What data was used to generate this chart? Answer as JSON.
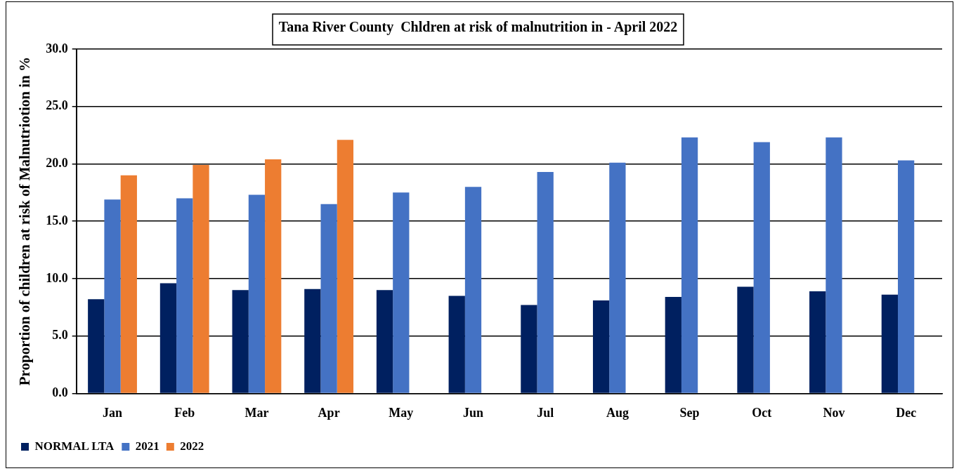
{
  "chart_data": {
    "type": "bar",
    "title": "Tana River County  Chldren at risk of malnutrition in - April 2022",
    "ylabel": "Proportion of children at risk of Malnutriotion in %",
    "categories": [
      "Jan",
      "Feb",
      "Mar",
      "Apr",
      "May",
      "Jun",
      "Jul",
      "Aug",
      "Sep",
      "Oct",
      "Nov",
      "Dec"
    ],
    "series": [
      {
        "name": "NORMAL LTA",
        "color": "#002060",
        "values": [
          8.2,
          9.6,
          9.0,
          9.1,
          9.0,
          8.5,
          7.7,
          8.1,
          8.4,
          9.3,
          8.9,
          8.6
        ]
      },
      {
        "name": "2021",
        "color": "#4472c4",
        "values": [
          16.9,
          17.0,
          17.3,
          16.5,
          17.5,
          18.0,
          19.3,
          20.1,
          22.3,
          21.9,
          22.3,
          20.3
        ]
      },
      {
        "name": "2022",
        "color": "#ed7d31",
        "values": [
          19.0,
          19.9,
          20.4,
          22.1,
          null,
          null,
          null,
          null,
          null,
          null,
          null,
          null
        ]
      }
    ],
    "ylim": [
      0,
      30
    ],
    "yticks": [
      {
        "value": 0,
        "label": "0.0"
      },
      {
        "value": 5,
        "label": "5.0"
      },
      {
        "value": 10,
        "label": "10.0"
      },
      {
        "value": 15,
        "label": "15.0"
      },
      {
        "value": 20,
        "label": "20.0"
      },
      {
        "value": 25,
        "label": "25.0"
      },
      {
        "value": 30,
        "label": "30.0"
      }
    ],
    "grid": "y",
    "legend": "bottom left"
  }
}
